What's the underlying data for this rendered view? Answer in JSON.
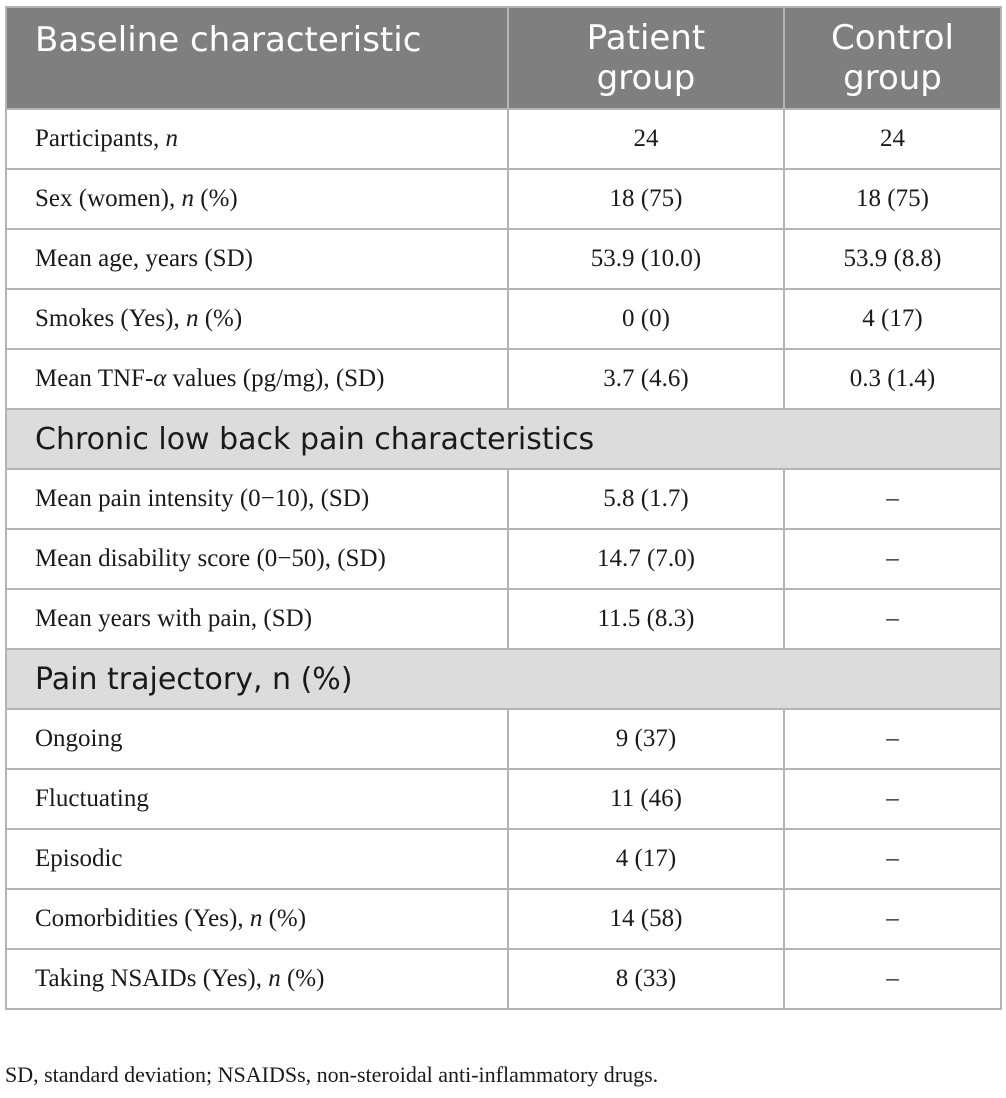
{
  "header": {
    "col1": "Baseline characteristic",
    "col2_line1": "Patient",
    "col2_line2": "group",
    "col3_line1": "Control",
    "col3_line2": "group"
  },
  "rows": [
    {
      "pre": "Participants, ",
      "it": "n",
      "post": "",
      "patient": "24",
      "control": "24"
    },
    {
      "pre": "Sex (women), ",
      "it": "n",
      "post": " (%)",
      "patient": "18 (75)",
      "control": "18 (75)"
    },
    {
      "pre": "Mean age, years (SD)",
      "it": "",
      "post": "",
      "patient": "53.9 (10.0)",
      "control": "53.9 (8.8)"
    },
    {
      "pre": "Smokes (Yes), ",
      "it": "n",
      "post": " (%)",
      "patient": "0 (0)",
      "control": "4 (17)"
    },
    {
      "pre": "Mean TNF-",
      "it": "α",
      "post": " values (pg/mg), (SD)",
      "patient": "3.7 (4.6)",
      "control": "0.3 (1.4)"
    }
  ],
  "section_pain": "Chronic low back pain characteristics",
  "pain_rows": [
    {
      "label": "Mean pain intensity (0−10), (SD)",
      "patient": "5.8 (1.7)",
      "control": "–"
    },
    {
      "label": "Mean disability score (0−50), (SD)",
      "patient": "14.7 (7.0)",
      "control": "–"
    },
    {
      "label": "Mean years with pain, (SD)",
      "patient": "11.5 (8.3)",
      "control": "–"
    }
  ],
  "section_trajectory": "Pain trajectory, n (%)",
  "trajectory_rows": [
    {
      "pre": "Ongoing",
      "it": "",
      "post": "",
      "patient": "9 (37)",
      "control": "–"
    },
    {
      "pre": "Fluctuating",
      "it": "",
      "post": "",
      "patient": "11 (46)",
      "control": "–"
    },
    {
      "pre": "Episodic",
      "it": "",
      "post": "",
      "patient": "4 (17)",
      "control": "–"
    },
    {
      "pre": "Comorbidities (Yes), ",
      "it": "n",
      "post": " (%)",
      "patient": "14 (58)",
      "control": "–"
    },
    {
      "pre": "Taking NSAIDs (Yes), ",
      "it": "n",
      "post": " (%)",
      "patient": "8 (33)",
      "control": "–"
    }
  ],
  "footnote": "SD, standard deviation; NSAIDSs, non-steroidal anti-inflammatory drugs."
}
